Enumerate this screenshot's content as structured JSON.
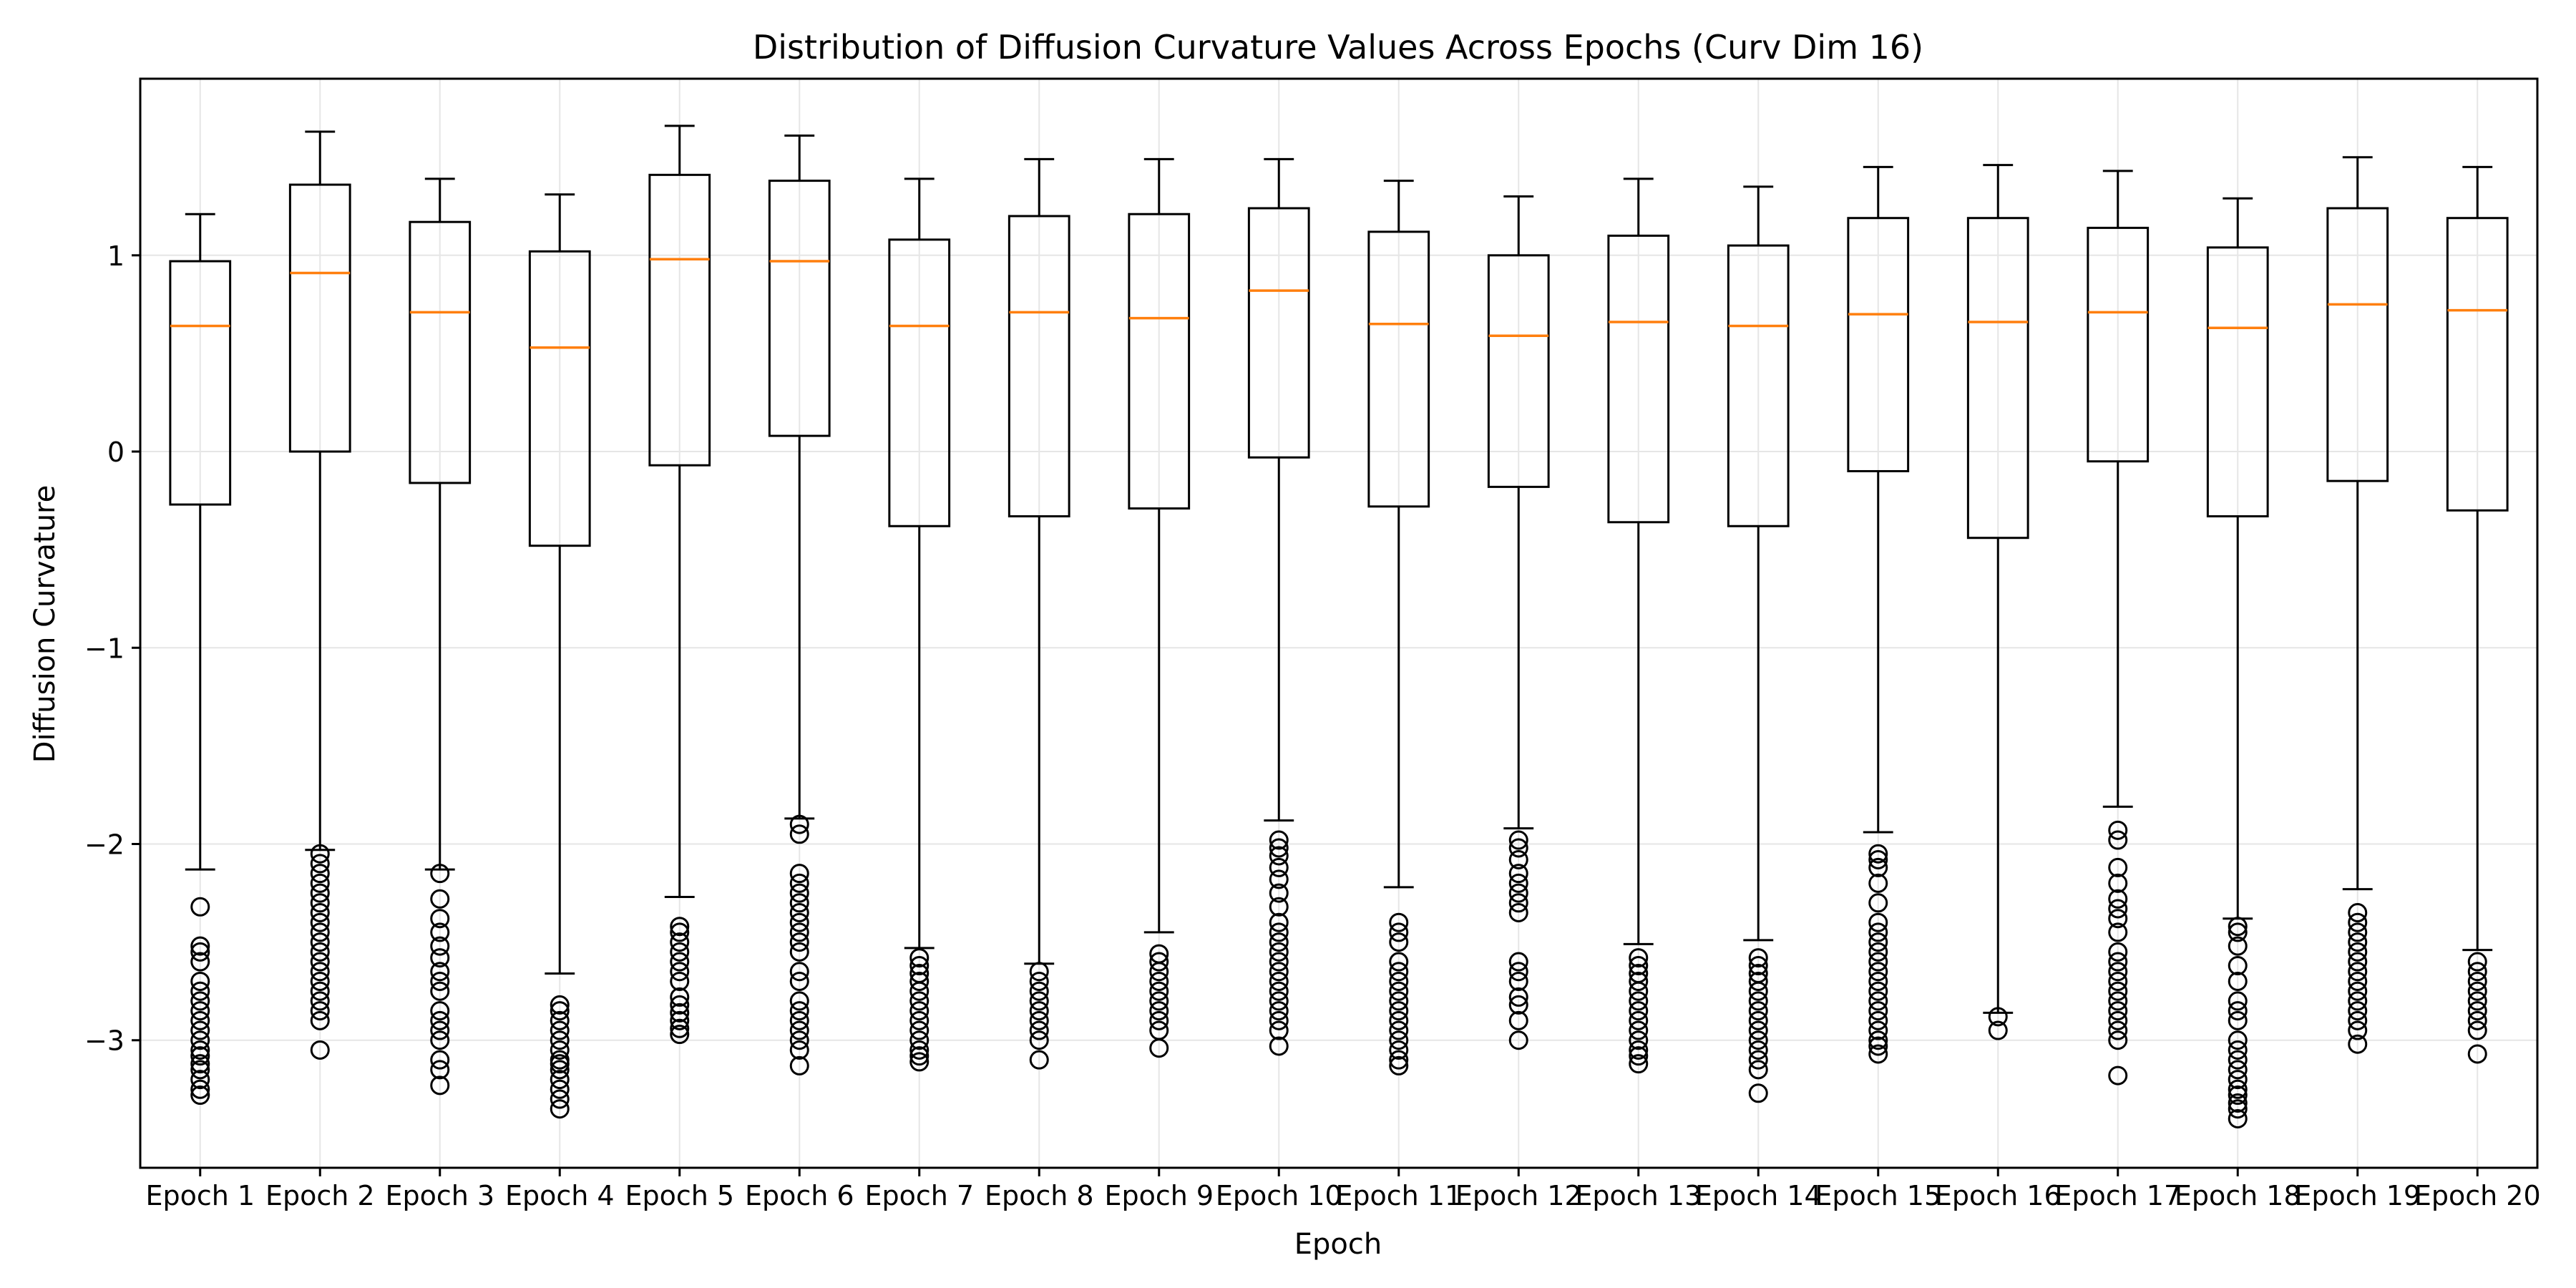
{
  "chart_data": {
    "type": "box",
    "title": "Distribution of Diffusion Curvature Values Across Epochs (Curv Dim 16)",
    "xlabel": "Epoch",
    "ylabel": "Diffusion Curvature",
    "ylim": [
      -3.65,
      1.9
    ],
    "yticks": [
      1,
      0,
      -1,
      -2,
      -3
    ],
    "ytick_labels": [
      "1",
      "0",
      "−1",
      "−2",
      "−3"
    ],
    "grid": true,
    "colors": {
      "box": "#000000",
      "median": "#ff7f0e",
      "grid": "#e6e6e6"
    },
    "categories": [
      "Epoch 1",
      "Epoch 2",
      "Epoch 3",
      "Epoch 4",
      "Epoch 5",
      "Epoch 6",
      "Epoch 7",
      "Epoch 8",
      "Epoch 9",
      "Epoch 10",
      "Epoch 11",
      "Epoch 12",
      "Epoch 13",
      "Epoch 14",
      "Epoch 15",
      "Epoch 16",
      "Epoch 17",
      "Epoch 18",
      "Epoch 19",
      "Epoch 20"
    ],
    "boxes": [
      {
        "whislo": -2.13,
        "q1": -0.27,
        "med": 0.64,
        "q3": 0.97,
        "whishi": 1.21,
        "fliers": [
          -2.32,
          -2.52,
          -2.55,
          -2.6,
          -2.7,
          -2.75,
          -2.8,
          -2.85,
          -2.9,
          -2.95,
          -3.0,
          -3.05,
          -3.08,
          -3.12,
          -3.15,
          -3.2,
          -3.25,
          -3.28
        ]
      },
      {
        "whislo": -2.03,
        "q1": 0.0,
        "med": 0.91,
        "q3": 1.36,
        "whishi": 1.63,
        "fliers": [
          -2.05,
          -2.1,
          -2.15,
          -2.2,
          -2.25,
          -2.3,
          -2.35,
          -2.4,
          -2.45,
          -2.5,
          -2.55,
          -2.6,
          -2.65,
          -2.7,
          -2.75,
          -2.8,
          -2.85,
          -2.9,
          -3.05
        ]
      },
      {
        "whislo": -2.13,
        "q1": -0.16,
        "med": 0.71,
        "q3": 1.17,
        "whishi": 1.39,
        "fliers": [
          -2.15,
          -2.28,
          -2.38,
          -2.45,
          -2.52,
          -2.58,
          -2.65,
          -2.7,
          -2.75,
          -2.85,
          -2.9,
          -2.95,
          -3.0,
          -3.1,
          -3.15,
          -3.23
        ]
      },
      {
        "whislo": -2.66,
        "q1": -0.48,
        "med": 0.53,
        "q3": 1.02,
        "whishi": 1.31,
        "fliers": [
          -2.82,
          -2.85,
          -2.9,
          -2.95,
          -3.0,
          -3.05,
          -3.1,
          -3.12,
          -3.15,
          -3.2,
          -3.25,
          -3.3,
          -3.35
        ]
      },
      {
        "whislo": -2.27,
        "q1": -0.07,
        "med": 0.98,
        "q3": 1.41,
        "whishi": 1.66,
        "fliers": [
          -2.42,
          -2.45,
          -2.5,
          -2.55,
          -2.6,
          -2.65,
          -2.7,
          -2.78,
          -2.82,
          -2.86,
          -2.9,
          -2.94,
          -2.97
        ]
      },
      {
        "whislo": -1.87,
        "q1": 0.08,
        "med": 0.97,
        "q3": 1.38,
        "whishi": 1.61,
        "fliers": [
          -1.9,
          -1.95,
          -2.15,
          -2.2,
          -2.25,
          -2.3,
          -2.35,
          -2.4,
          -2.45,
          -2.5,
          -2.55,
          -2.65,
          -2.7,
          -2.8,
          -2.85,
          -2.9,
          -2.95,
          -3.0,
          -3.05,
          -3.13
        ]
      },
      {
        "whislo": -2.53,
        "q1": -0.38,
        "med": 0.64,
        "q3": 1.08,
        "whishi": 1.39,
        "fliers": [
          -2.58,
          -2.62,
          -2.66,
          -2.7,
          -2.75,
          -2.8,
          -2.85,
          -2.9,
          -2.95,
          -3.0,
          -3.05,
          -3.08,
          -3.11
        ]
      },
      {
        "whislo": -2.61,
        "q1": -0.33,
        "med": 0.71,
        "q3": 1.2,
        "whishi": 1.49,
        "fliers": [
          -2.65,
          -2.7,
          -2.75,
          -2.8,
          -2.85,
          -2.9,
          -2.95,
          -3.0,
          -3.1
        ]
      },
      {
        "whislo": -2.45,
        "q1": -0.29,
        "med": 0.68,
        "q3": 1.21,
        "whishi": 1.49,
        "fliers": [
          -2.56,
          -2.6,
          -2.65,
          -2.7,
          -2.75,
          -2.8,
          -2.85,
          -2.9,
          -2.95,
          -3.04
        ]
      },
      {
        "whislo": -1.88,
        "q1": -0.03,
        "med": 0.82,
        "q3": 1.24,
        "whishi": 1.49,
        "fliers": [
          -1.98,
          -2.02,
          -2.06,
          -2.12,
          -2.18,
          -2.25,
          -2.32,
          -2.4,
          -2.45,
          -2.5,
          -2.55,
          -2.6,
          -2.65,
          -2.7,
          -2.75,
          -2.8,
          -2.85,
          -2.9,
          -2.95,
          -3.03
        ]
      },
      {
        "whislo": -2.22,
        "q1": -0.28,
        "med": 0.65,
        "q3": 1.12,
        "whishi": 1.38,
        "fliers": [
          -2.4,
          -2.45,
          -2.5,
          -2.6,
          -2.65,
          -2.7,
          -2.75,
          -2.8,
          -2.85,
          -2.9,
          -2.95,
          -3.0,
          -3.05,
          -3.1,
          -3.13
        ]
      },
      {
        "whislo": -1.92,
        "q1": -0.18,
        "med": 0.59,
        "q3": 1.0,
        "whishi": 1.3,
        "fliers": [
          -1.98,
          -2.02,
          -2.08,
          -2.15,
          -2.2,
          -2.25,
          -2.3,
          -2.35,
          -2.6,
          -2.65,
          -2.7,
          -2.78,
          -2.82,
          -2.9,
          -3.0
        ]
      },
      {
        "whislo": -2.51,
        "q1": -0.36,
        "med": 0.66,
        "q3": 1.1,
        "whishi": 1.39,
        "fliers": [
          -2.58,
          -2.62,
          -2.66,
          -2.7,
          -2.75,
          -2.8,
          -2.85,
          -2.9,
          -2.95,
          -3.0,
          -3.05,
          -3.08,
          -3.12
        ]
      },
      {
        "whislo": -2.49,
        "q1": -0.38,
        "med": 0.64,
        "q3": 1.05,
        "whishi": 1.35,
        "fliers": [
          -2.58,
          -2.62,
          -2.66,
          -2.7,
          -2.75,
          -2.8,
          -2.85,
          -2.9,
          -2.95,
          -3.0,
          -3.05,
          -3.1,
          -3.15,
          -3.27
        ]
      },
      {
        "whislo": -1.94,
        "q1": -0.1,
        "med": 0.7,
        "q3": 1.19,
        "whishi": 1.45,
        "fliers": [
          -2.05,
          -2.08,
          -2.12,
          -2.2,
          -2.3,
          -2.4,
          -2.45,
          -2.5,
          -2.55,
          -2.6,
          -2.65,
          -2.7,
          -2.75,
          -2.8,
          -2.85,
          -2.9,
          -2.95,
          -3.0,
          -3.03,
          -3.07
        ]
      },
      {
        "whislo": -2.86,
        "q1": -0.44,
        "med": 0.66,
        "q3": 1.19,
        "whishi": 1.46,
        "fliers": [
          -2.88,
          -2.95
        ]
      },
      {
        "whislo": -1.81,
        "q1": -0.05,
        "med": 0.71,
        "q3": 1.14,
        "whishi": 1.43,
        "fliers": [
          -1.93,
          -1.98,
          -2.12,
          -2.2,
          -2.28,
          -2.33,
          -2.38,
          -2.45,
          -2.55,
          -2.6,
          -2.65,
          -2.7,
          -2.75,
          -2.8,
          -2.85,
          -2.9,
          -2.95,
          -3.0,
          -3.18
        ]
      },
      {
        "whislo": -2.38,
        "q1": -0.33,
        "med": 0.63,
        "q3": 1.04,
        "whishi": 1.29,
        "fliers": [
          -2.42,
          -2.45,
          -2.52,
          -2.62,
          -2.7,
          -2.8,
          -2.85,
          -2.9,
          -3.0,
          -3.05,
          -3.1,
          -3.15,
          -3.2,
          -3.25,
          -3.28,
          -3.32,
          -3.35,
          -3.4
        ]
      },
      {
        "whislo": -2.23,
        "q1": -0.15,
        "med": 0.75,
        "q3": 1.24,
        "whishi": 1.5,
        "fliers": [
          -2.35,
          -2.4,
          -2.45,
          -2.5,
          -2.55,
          -2.6,
          -2.65,
          -2.7,
          -2.75,
          -2.8,
          -2.85,
          -2.9,
          -2.95,
          -3.02
        ]
      },
      {
        "whislo": -2.54,
        "q1": -0.3,
        "med": 0.72,
        "q3": 1.19,
        "whishi": 1.45,
        "fliers": [
          -2.6,
          -2.65,
          -2.7,
          -2.75,
          -2.8,
          -2.85,
          -2.9,
          -2.95,
          -3.07
        ]
      }
    ]
  }
}
